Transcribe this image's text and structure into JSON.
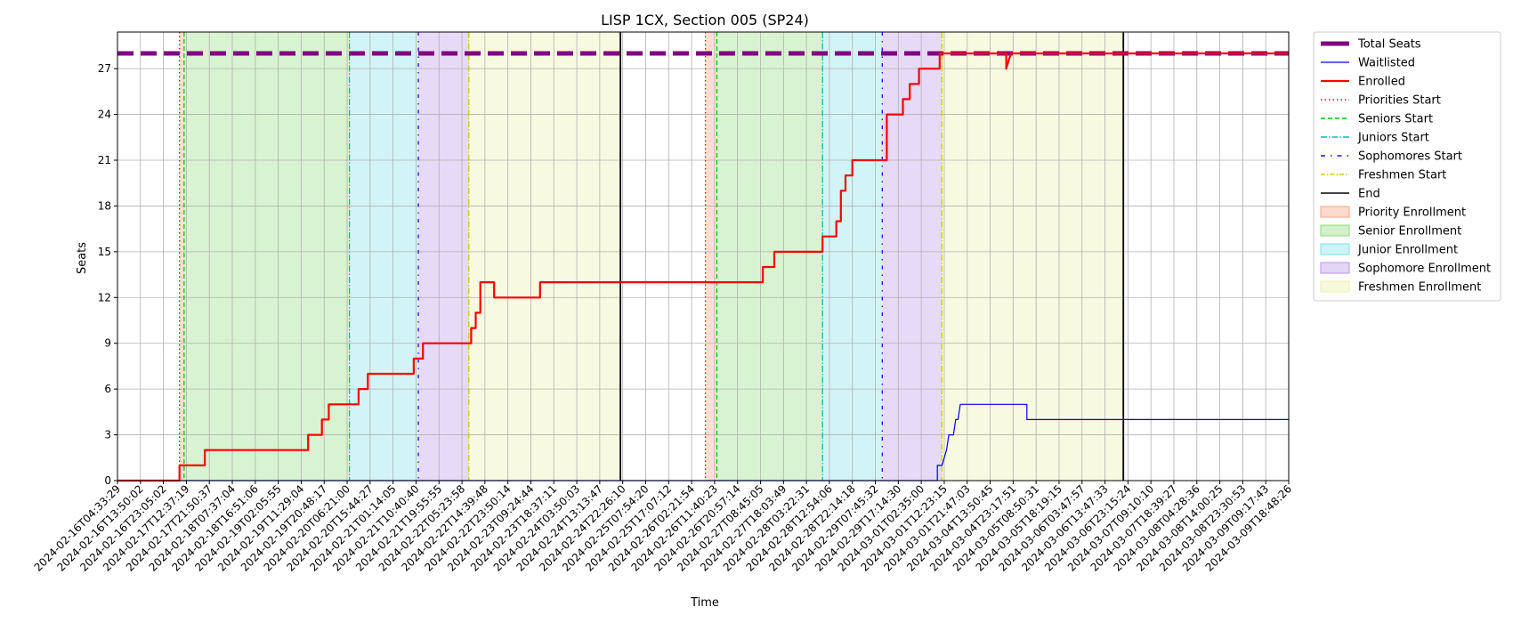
{
  "chart_data": {
    "type": "line",
    "title": "LISP 1CX, Section 005 (SP24)",
    "xlabel": "Time",
    "ylabel": "Seats",
    "ylim": [
      0,
      29.4
    ],
    "yticks": [
      0,
      3,
      6,
      9,
      12,
      15,
      18,
      21,
      24,
      27
    ],
    "grid": true,
    "legend_position": "outside-right",
    "x_tick_labels": [
      "2024-02-16T04:33:29",
      "2024-02-16T13:50:02",
      "2024-02-16T23:05:02",
      "2024-02-17T12:37:19",
      "2024-02-17T21:50:37",
      "2024-02-18T07:37:04",
      "2024-02-18T16:51:06",
      "2024-02-19T02:05:55",
      "2024-02-19T11:29:04",
      "2024-02-19T20:48:17",
      "2024-02-20T06:21:00",
      "2024-02-20T15:44:27",
      "2024-02-21T01:14:05",
      "2024-02-21T10:40:40",
      "2024-02-21T19:55:55",
      "2024-02-22T05:23:58",
      "2024-02-22T14:39:48",
      "2024-02-22T23:50:14",
      "2024-02-23T09:24:44",
      "2024-02-23T18:37:11",
      "2024-02-24T03:50:03",
      "2024-02-24T13:13:47",
      "2024-02-24T22:26:10",
      "2024-02-25T07:54:20",
      "2024-02-25T17:07:12",
      "2024-02-26T02:21:54",
      "2024-02-26T11:40:23",
      "2024-02-26T20:57:14",
      "2024-02-27T08:45:05",
      "2024-02-27T18:03:49",
      "2024-02-28T03:22:31",
      "2024-02-28T12:54:06",
      "2024-02-28T22:14:18",
      "2024-02-29T07:45:32",
      "2024-02-29T17:14:30",
      "2024-03-01T02:35:00",
      "2024-03-01T12:23:15",
      "2024-03-01T21:47:03",
      "2024-03-04T13:50:45",
      "2024-03-04T23:17:51",
      "2024-03-05T08:50:31",
      "2024-03-05T18:19:15",
      "2024-03-06T03:47:57",
      "2024-03-06T13:47:33",
      "2024-03-06T23:15:24",
      "2024-03-07T09:10:10",
      "2024-03-07T18:39:27",
      "2024-03-08T04:28:36",
      "2024-03-08T14:00:25",
      "2024-03-08T23:30:53",
      "2024-03-09T09:17:43",
      "2024-03-09T18:48:26"
    ],
    "series": [
      {
        "name": "Total Seats",
        "color": "#800080",
        "style": "dashed-thick",
        "points": [
          [
            0,
            28
          ],
          [
            51,
            28
          ]
        ]
      },
      {
        "name": "Waitlisted",
        "color": "#0000ff",
        "style": "solid-thin",
        "points": [
          [
            0,
            0
          ],
          [
            35.7,
            0
          ],
          [
            35.7,
            1
          ],
          [
            35.9,
            1
          ],
          [
            36.1,
            2
          ],
          [
            36.2,
            3
          ],
          [
            36.4,
            3
          ],
          [
            36.5,
            4
          ],
          [
            36.6,
            4
          ],
          [
            36.7,
            5
          ],
          [
            39.6,
            5
          ],
          [
            39.6,
            4
          ],
          [
            51,
            4
          ]
        ]
      },
      {
        "name": "Enrolled",
        "color": "#ff0000",
        "style": "solid-thick",
        "points": [
          [
            0,
            0
          ],
          [
            2.7,
            0
          ],
          [
            2.7,
            1
          ],
          [
            3.8,
            1
          ],
          [
            3.8,
            2
          ],
          [
            8.3,
            2
          ],
          [
            8.3,
            3
          ],
          [
            8.9,
            3
          ],
          [
            8.9,
            4
          ],
          [
            9.2,
            4
          ],
          [
            9.2,
            5
          ],
          [
            10.5,
            5
          ],
          [
            10.5,
            6
          ],
          [
            10.9,
            6
          ],
          [
            10.9,
            7
          ],
          [
            12.9,
            7
          ],
          [
            12.9,
            8
          ],
          [
            13.3,
            8
          ],
          [
            13.3,
            9
          ],
          [
            15.4,
            9
          ],
          [
            15.4,
            10
          ],
          [
            15.6,
            10
          ],
          [
            15.6,
            11
          ],
          [
            15.8,
            11
          ],
          [
            15.8,
            13
          ],
          [
            16.4,
            13
          ],
          [
            16.4,
            12
          ],
          [
            18.4,
            12
          ],
          [
            18.4,
            13
          ],
          [
            28.1,
            13
          ],
          [
            28.1,
            14
          ],
          [
            28.6,
            14
          ],
          [
            28.6,
            15
          ],
          [
            30.7,
            15
          ],
          [
            30.7,
            16
          ],
          [
            31.3,
            16
          ],
          [
            31.3,
            17
          ],
          [
            31.5,
            17
          ],
          [
            31.5,
            19
          ],
          [
            31.7,
            19
          ],
          [
            31.7,
            20
          ],
          [
            32.0,
            20
          ],
          [
            32.0,
            21
          ],
          [
            33.5,
            21
          ],
          [
            33.5,
            24
          ],
          [
            34.2,
            24
          ],
          [
            34.2,
            25
          ],
          [
            34.5,
            25
          ],
          [
            34.5,
            26
          ],
          [
            34.9,
            26
          ],
          [
            34.9,
            27
          ],
          [
            35.8,
            27
          ],
          [
            35.8,
            28
          ],
          [
            38.7,
            28
          ],
          [
            38.7,
            27
          ],
          [
            38.9,
            28
          ],
          [
            51,
            28
          ]
        ]
      }
    ],
    "events": [
      {
        "name": "Priorities Start",
        "color": "#ff0000",
        "style": "dotted",
        "x": [
          2.7,
          25.6
        ]
      },
      {
        "name": "Seniors Start",
        "color": "#00cc00",
        "style": "dashed",
        "x": [
          2.9,
          26.1
        ]
      },
      {
        "name": "Juniors Start",
        "color": "#00bfbf",
        "style": "dashdot",
        "x": [
          10.1,
          30.7
        ]
      },
      {
        "name": "Sophomores Start",
        "color": "#3300ff",
        "style": "loose-dashdot",
        "x": [
          13.1,
          33.3
        ]
      },
      {
        "name": "Freshmen Start",
        "color": "#cccc00",
        "style": "dashdot",
        "x": [
          15.3,
          35.9
        ]
      },
      {
        "name": "End",
        "color": "#000000",
        "style": "solid",
        "x": [
          21.9,
          43.8
        ]
      }
    ],
    "regions": [
      {
        "name": "Priority Enrollment",
        "color": "#f4a582",
        "spans": [
          [
            2.7,
            2.9
          ],
          [
            25.6,
            26.1
          ]
        ]
      },
      {
        "name": "Senior Enrollment",
        "color": "#8fdc7a",
        "spans": [
          [
            2.9,
            10.1
          ],
          [
            26.1,
            30.7
          ]
        ]
      },
      {
        "name": "Junior Enrollment",
        "color": "#80e0e6",
        "spans": [
          [
            10.1,
            13.1
          ],
          [
            30.7,
            33.3
          ]
        ]
      },
      {
        "name": "Sophomore Enrollment",
        "color": "#b896e8",
        "spans": [
          [
            13.1,
            15.3
          ],
          [
            33.3,
            35.9
          ]
        ]
      },
      {
        "name": "Freshmen Enrollment",
        "color": "#ecefa8",
        "spans": [
          [
            15.3,
            21.9
          ],
          [
            35.9,
            43.8
          ]
        ]
      }
    ],
    "legend": [
      {
        "label": "Total Seats",
        "kind": "line",
        "color": "#800080",
        "dash": "",
        "width": 5
      },
      {
        "label": "Waitlisted",
        "kind": "line",
        "color": "#0000ff",
        "dash": "",
        "width": 1.2
      },
      {
        "label": "Enrolled",
        "kind": "line",
        "color": "#ff0000",
        "dash": "",
        "width": 2.2
      },
      {
        "label": "Priorities Start",
        "kind": "line",
        "color": "#ff0000",
        "dash": "1.5,3",
        "width": 1.5
      },
      {
        "label": "Seniors Start",
        "kind": "line",
        "color": "#00cc00",
        "dash": "5,3",
        "width": 1.5
      },
      {
        "label": "Juniors Start",
        "kind": "line",
        "color": "#00bfbf",
        "dash": "7,2,1.5,2",
        "width": 1.5
      },
      {
        "label": "Sophomores Start",
        "kind": "line",
        "color": "#3300ff",
        "dash": "5,6,1.5,6",
        "width": 1.5
      },
      {
        "label": "Freshmen Start",
        "kind": "line",
        "color": "#cccc00",
        "dash": "5,2,1.5,2",
        "width": 1.5
      },
      {
        "label": "End",
        "kind": "line",
        "color": "#000000",
        "dash": "",
        "width": 1.5
      },
      {
        "label": "Priority Enrollment",
        "kind": "patch",
        "color": "#f4a582"
      },
      {
        "label": "Senior Enrollment",
        "kind": "patch",
        "color": "#8fdc7a"
      },
      {
        "label": "Junior Enrollment",
        "kind": "patch",
        "color": "#80e0e6"
      },
      {
        "label": "Sophomore Enrollment",
        "kind": "patch",
        "color": "#b896e8"
      },
      {
        "label": "Freshmen Enrollment",
        "kind": "patch",
        "color": "#ecefa8"
      }
    ]
  }
}
